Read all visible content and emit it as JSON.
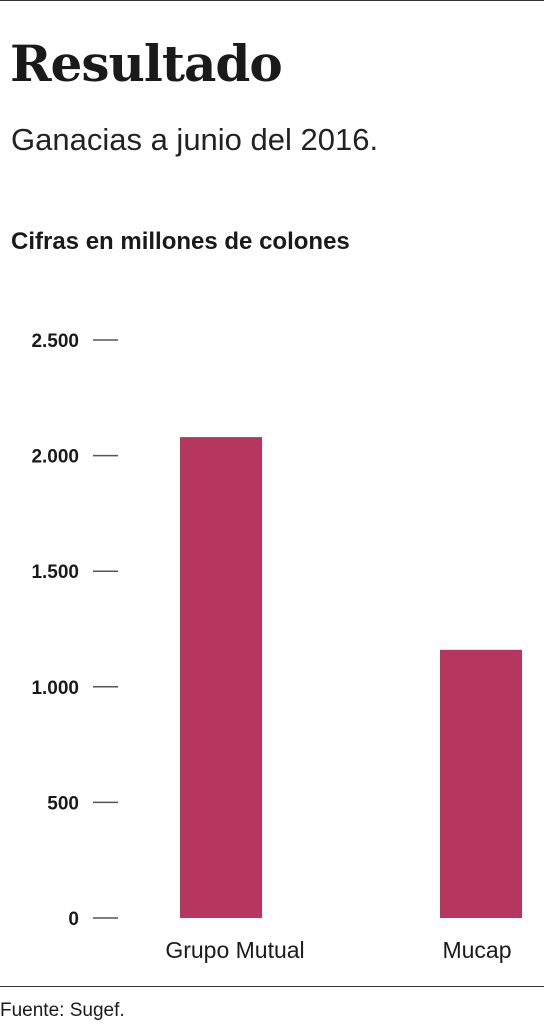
{
  "header": {
    "title": "Resultado",
    "subtitle": "Ganacias a junio del 2016.",
    "unit_label": "Cifras en millones de colones"
  },
  "footer": {
    "source": "Fuente: Sugef."
  },
  "colors": {
    "bar": "#b5375f",
    "tick": "#555555"
  },
  "chart_data": {
    "type": "bar",
    "title": "",
    "xlabel": "",
    "ylabel": "",
    "categories": [
      "Grupo Mutual",
      "Mucap"
    ],
    "values": [
      2080,
      1160
    ],
    "ylim": [
      0,
      2500
    ],
    "yticks": [
      0,
      500,
      1000,
      1500,
      2000,
      2500
    ],
    "ytick_labels": [
      "0",
      "500",
      "1.000",
      "1.500",
      "2.000",
      "2.500"
    ],
    "grid": false,
    "legend": "none"
  }
}
